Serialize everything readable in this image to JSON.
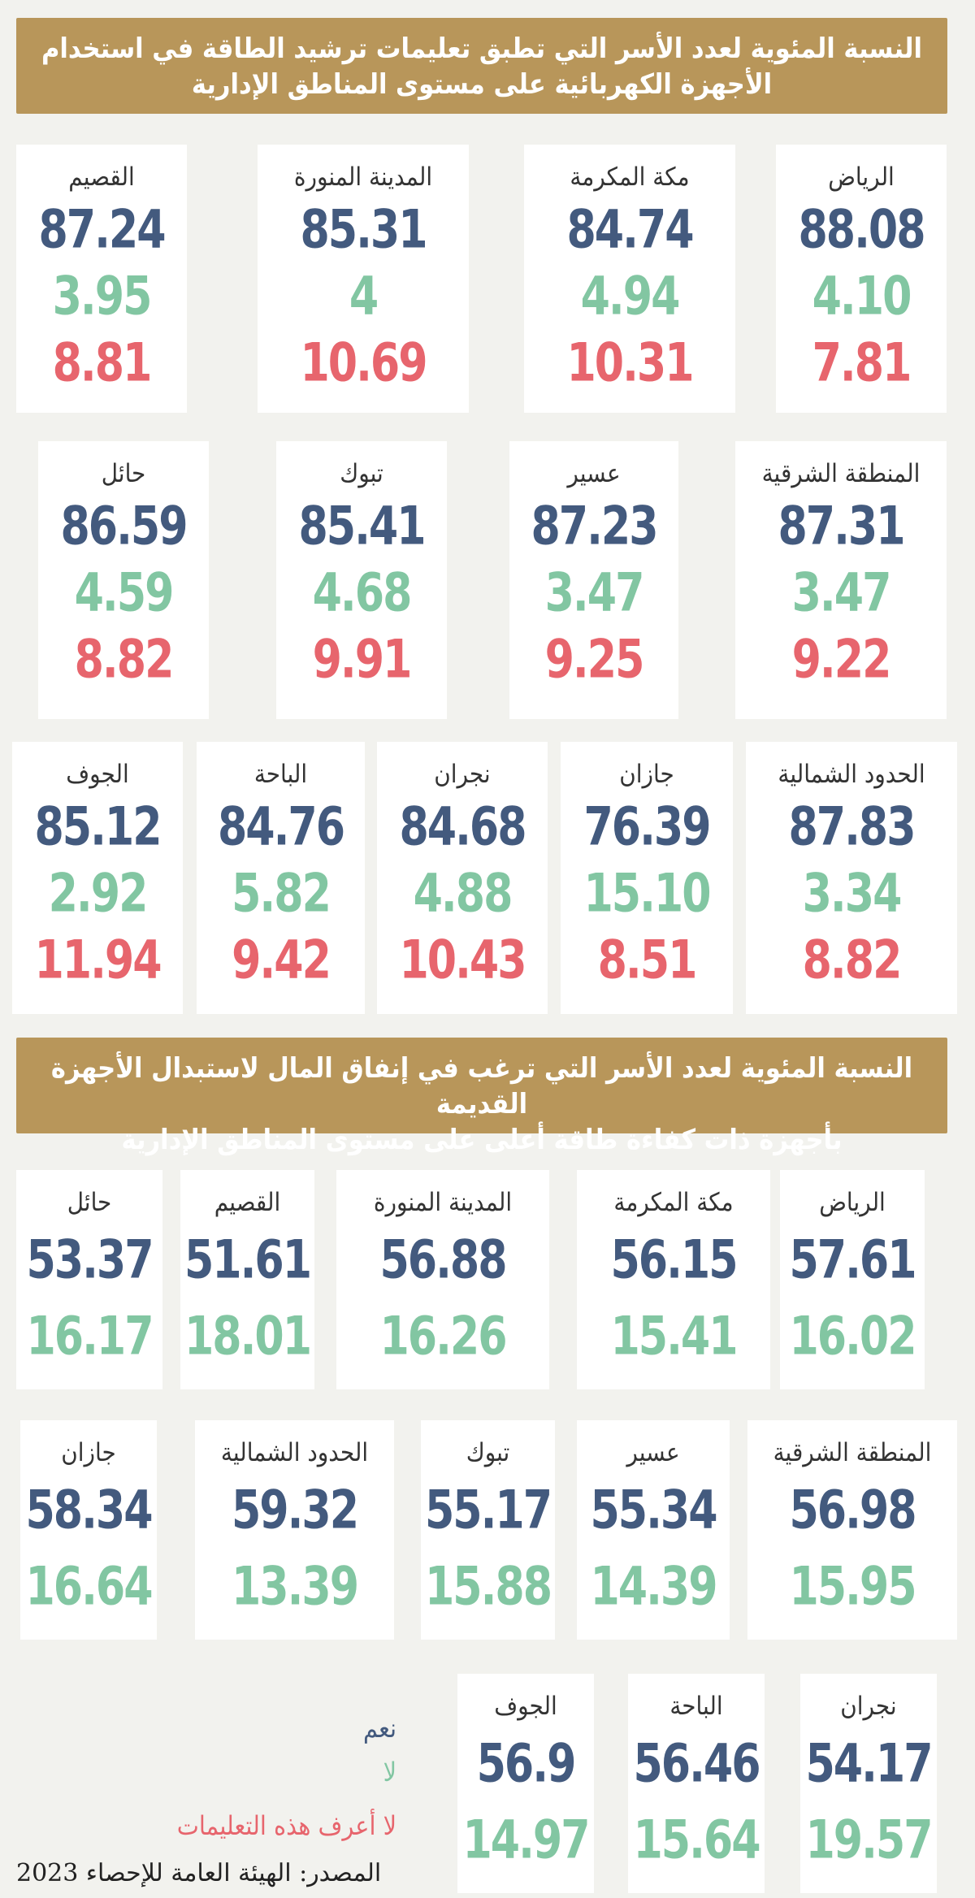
{
  "section1": {
    "title_line1": "النسبة المئوية لعدد الأسر التي تطبق تعليمات ترشيد الطاقة في استخدام",
    "title_line2": "الأجهزة الكهربائية على مستوى المناطق الإدارية"
  },
  "section2": {
    "title_line1": "النسبة المئوية لعدد الأسر التي ترغب في إنفاق المال لاستبدال الأجهزة القديمة",
    "title_line2": "بأجهزة ذات كفاءة طاقة أعلى على مستوى المناطق الإدارية"
  },
  "legend": {
    "yes": "نعم",
    "no": "لا",
    "unknown": "لا أعرف هذه التعليمات"
  },
  "source": "المصدر: الهيئة العامة للإحصاء 2023",
  "colors": {
    "yes": "#435a7e",
    "no": "#82c6a2",
    "unknown": "#e7656d",
    "banner": "#b8965a"
  },
  "chart_data": [
    {
      "type": "table",
      "series": [
        "نعم",
        "لا",
        "لا أعرف هذه التعليمات"
      ],
      "rows": [
        {
          "region": "الرياض",
          "values": [
            "88.08",
            "4.10",
            "7.81"
          ]
        },
        {
          "region": "مكة المكرمة",
          "values": [
            "84.74",
            "4.94",
            "10.31"
          ]
        },
        {
          "region": "المدينة المنورة",
          "values": [
            "85.31",
            "4",
            "10.69"
          ]
        },
        {
          "region": "القصيم",
          "values": [
            "87.24",
            "3.95",
            "8.81"
          ]
        },
        {
          "region": "المنطقة الشرقية",
          "values": [
            "87.31",
            "3.47",
            "9.22"
          ]
        },
        {
          "region": "عسير",
          "values": [
            "87.23",
            "3.47",
            "9.25"
          ]
        },
        {
          "region": "تبوك",
          "values": [
            "85.41",
            "4.68",
            "9.91"
          ]
        },
        {
          "region": "حائل",
          "values": [
            "86.59",
            "4.59",
            "8.82"
          ]
        },
        {
          "region": "الحدود الشمالية",
          "values": [
            "87.83",
            "3.34",
            "8.82"
          ]
        },
        {
          "region": "جازان",
          "values": [
            "76.39",
            "15.10",
            "8.51"
          ]
        },
        {
          "region": "نجران",
          "values": [
            "84.68",
            "4.88",
            "10.43"
          ]
        },
        {
          "region": "الباحة",
          "values": [
            "84.76",
            "5.82",
            "9.42"
          ]
        },
        {
          "region": "الجوف",
          "values": [
            "85.12",
            "2.92",
            "11.94"
          ]
        }
      ]
    },
    {
      "type": "table",
      "series": [
        "نعم",
        "لا"
      ],
      "rows": [
        {
          "region": "الرياض",
          "values": [
            "57.61",
            "16.02"
          ]
        },
        {
          "region": "مكة المكرمة",
          "values": [
            "56.15",
            "15.41"
          ]
        },
        {
          "region": "المدينة المنورة",
          "values": [
            "56.88",
            "16.26"
          ]
        },
        {
          "region": "القصيم",
          "values": [
            "51.61",
            "18.01"
          ]
        },
        {
          "region": "حائل",
          "values": [
            "53.37",
            "16.17"
          ]
        },
        {
          "region": "المنطقة الشرقية",
          "values": [
            "56.98",
            "15.95"
          ]
        },
        {
          "region": "عسير",
          "values": [
            "55.34",
            "14.39"
          ]
        },
        {
          "region": "تبوك",
          "values": [
            "55.17",
            "15.88"
          ]
        },
        {
          "region": "الحدود الشمالية",
          "values": [
            "59.32",
            "13.39"
          ]
        },
        {
          "region": "جازان",
          "values": [
            "58.34",
            "16.64"
          ]
        },
        {
          "region": "نجران",
          "values": [
            "54.17",
            "19.57"
          ]
        },
        {
          "region": "الباحة",
          "values": [
            "56.46",
            "15.64"
          ]
        },
        {
          "region": "الجوف",
          "values": [
            "56.9",
            "14.97"
          ]
        }
      ]
    }
  ]
}
